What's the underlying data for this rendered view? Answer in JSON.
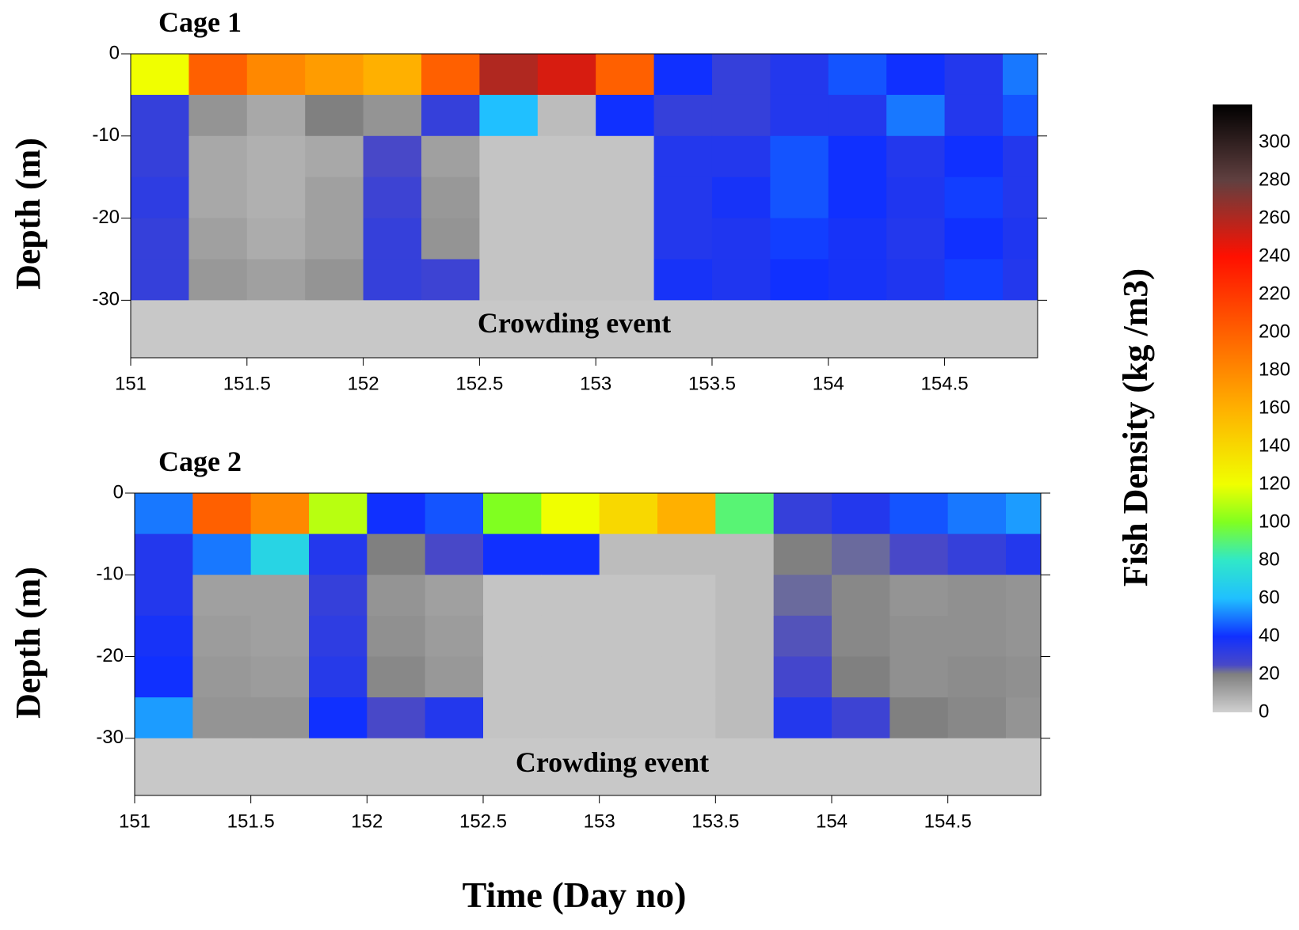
{
  "chart_data": [
    {
      "type": "heatmap",
      "title": "Cage 1",
      "ylabel": "Depth (m)",
      "annotation": "Crowding event",
      "x_edges": [
        151,
        151.25,
        151.5,
        151.75,
        152,
        152.25,
        152.5,
        152.75,
        153,
        153.25,
        153.5,
        153.75,
        154,
        154.25,
        154.5,
        154.75,
        154.9
      ],
      "y_edges": [
        0,
        -5,
        -10,
        -15,
        -20,
        -25,
        -30,
        -37
      ],
      "z": [
        [
          120,
          200,
          180,
          170,
          160,
          200,
          260,
          250,
          200,
          40,
          30,
          35,
          45,
          40,
          35,
          50
        ],
        [
          30,
          15,
          10,
          20,
          15,
          30,
          60,
          5,
          40,
          30,
          30,
          35,
          35,
          50,
          35,
          45
        ],
        [
          30,
          10,
          8,
          10,
          25,
          12,
          3,
          3,
          3,
          35,
          35,
          45,
          40,
          35,
          40,
          35
        ],
        [
          32,
          10,
          8,
          12,
          28,
          14,
          3,
          3,
          3,
          35,
          38,
          45,
          40,
          36,
          42,
          35
        ],
        [
          30,
          12,
          9,
          12,
          30,
          15,
          3,
          3,
          3,
          35,
          36,
          42,
          38,
          35,
          40,
          36
        ],
        [
          30,
          14,
          12,
          15,
          30,
          28,
          3,
          3,
          3,
          38,
          36,
          40,
          38,
          36,
          42,
          35
        ],
        [
          2,
          2,
          2,
          2,
          2,
          2,
          2,
          2,
          2,
          2,
          2,
          2,
          2,
          2,
          2,
          2
        ]
      ],
      "xlim": [
        151,
        154.9
      ],
      "ylim": [
        -37,
        0
      ],
      "xticks": [
        151,
        151.5,
        152,
        152.5,
        153,
        153.5,
        154,
        154.5
      ],
      "yticks": [
        0,
        -10,
        -20,
        -30
      ]
    },
    {
      "type": "heatmap",
      "title": "Cage 2",
      "ylabel": "Depth (m)",
      "annotation": "Crowding event",
      "xlabel": "Time (Day no)",
      "x_edges": [
        151,
        151.25,
        151.5,
        151.75,
        152,
        152.25,
        152.5,
        152.75,
        153,
        153.25,
        153.5,
        153.75,
        154,
        154.25,
        154.5,
        154.75,
        154.9
      ],
      "y_edges": [
        0,
        -5,
        -10,
        -15,
        -20,
        -25,
        -30,
        -37
      ],
      "z": [
        [
          50,
          200,
          180,
          110,
          40,
          45,
          100,
          120,
          140,
          160,
          90,
          30,
          35,
          45,
          50,
          55
        ],
        [
          35,
          50,
          70,
          35,
          20,
          25,
          40,
          40,
          5,
          5,
          5,
          20,
          22,
          25,
          30,
          35
        ],
        [
          35,
          12,
          12,
          30,
          15,
          12,
          3,
          3,
          3,
          3,
          5,
          22,
          18,
          15,
          16,
          15
        ],
        [
          38,
          13,
          12,
          32,
          16,
          13,
          3,
          3,
          3,
          3,
          5,
          24,
          18,
          16,
          16,
          15
        ],
        [
          40,
          14,
          13,
          34,
          18,
          14,
          3,
          3,
          3,
          3,
          5,
          26,
          20,
          16,
          17,
          16
        ],
        [
          55,
          15,
          15,
          40,
          25,
          35,
          3,
          3,
          3,
          3,
          5,
          35,
          28,
          20,
          18,
          15
        ],
        [
          2,
          2,
          2,
          2,
          2,
          2,
          2,
          2,
          2,
          2,
          2,
          2,
          2,
          2,
          2,
          2
        ]
      ],
      "xlim": [
        151,
        154.9
      ],
      "ylim": [
        -37,
        0
      ],
      "xticks": [
        151,
        151.5,
        152,
        152.5,
        153,
        153.5,
        154,
        154.5
      ],
      "yticks": [
        0,
        -10,
        -20,
        -30
      ]
    }
  ],
  "colorbar": {
    "label": "Fish Density (kg /m3)",
    "zlim": [
      0,
      320
    ],
    "ticks": [
      0,
      20,
      40,
      60,
      80,
      100,
      120,
      140,
      160,
      180,
      200,
      220,
      240,
      260,
      280,
      300
    ],
    "colormap": [
      [
        0,
        "#d0d0d0"
      ],
      [
        20,
        "#808080"
      ],
      [
        25,
        "#4848c8"
      ],
      [
        40,
        "#1030ff"
      ],
      [
        60,
        "#20c0ff"
      ],
      [
        80,
        "#30e8c8"
      ],
      [
        100,
        "#80ff20"
      ],
      [
        120,
        "#f0ff00"
      ],
      [
        160,
        "#ffb000"
      ],
      [
        200,
        "#ff6000"
      ],
      [
        240,
        "#ff1000"
      ],
      [
        280,
        "#604040"
      ],
      [
        320,
        "#000000"
      ]
    ]
  }
}
